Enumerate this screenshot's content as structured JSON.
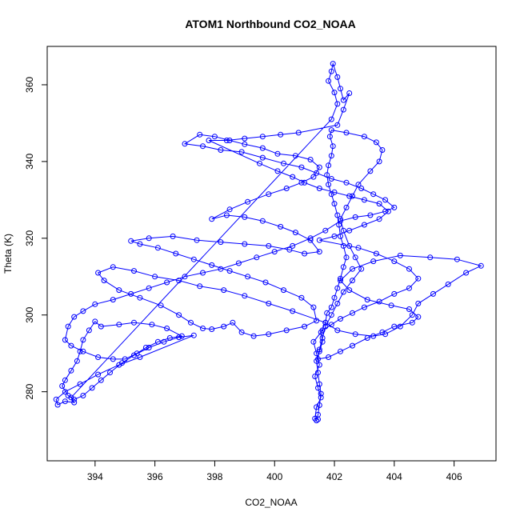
{
  "chart_data": {
    "type": "scatter",
    "title": "ATOM1 Northbound CO2_NOAA",
    "xlabel": "CO2_NOAA",
    "ylabel": "Theta (K)",
    "xlim": [
      392.4,
      407.4
    ],
    "ylim": [
      262.0,
      370.0
    ],
    "x_ticks": [
      394,
      396,
      398,
      400,
      402,
      404,
      406
    ],
    "y_ticks": [
      280,
      300,
      320,
      340,
      360
    ],
    "grid": false,
    "legend": "none",
    "markers": "open-circle",
    "connected": true,
    "series": [
      {
        "color": "#0000ff",
        "points": [
          [
            401.4,
            272.5
          ],
          [
            401.45,
            274.0
          ],
          [
            401.5,
            276.5
          ],
          [
            401.55,
            279.5
          ],
          [
            401.5,
            282.0
          ],
          [
            401.45,
            285.0
          ],
          [
            401.4,
            288.0
          ],
          [
            401.5,
            290.5
          ],
          [
            401.6,
            293.0
          ],
          [
            401.55,
            295.5
          ],
          [
            401.7,
            298.0
          ],
          [
            401.75,
            300.5
          ],
          [
            401.9,
            302.0
          ],
          [
            402.0,
            304.5
          ],
          [
            402.1,
            307.0
          ],
          [
            402.2,
            309.5
          ],
          [
            402.3,
            312.5
          ],
          [
            402.4,
            315.0
          ],
          [
            402.3,
            318.0
          ],
          [
            402.2,
            320.5
          ],
          [
            402.15,
            323.5
          ],
          [
            402.1,
            326.0
          ],
          [
            402.0,
            329.0
          ],
          [
            401.9,
            331.5
          ],
          [
            401.8,
            334.0
          ],
          [
            401.75,
            336.5
          ],
          [
            401.8,
            339.0
          ],
          [
            401.9,
            341.5
          ],
          [
            401.95,
            344.0
          ],
          [
            401.85,
            346.5
          ],
          [
            401.9,
            348.2
          ],
          [
            402.4,
            347.5
          ],
          [
            403.0,
            346.5
          ],
          [
            403.4,
            345.0
          ],
          [
            403.6,
            343.0
          ],
          [
            403.5,
            340.0
          ],
          [
            403.2,
            337.5
          ],
          [
            402.8,
            334.0
          ],
          [
            402.6,
            331.0
          ],
          [
            402.4,
            328.0
          ],
          [
            402.2,
            325.0
          ],
          [
            402.3,
            322.0
          ],
          [
            402.5,
            318.0
          ],
          [
            402.7,
            315.0
          ],
          [
            402.9,
            312.0
          ],
          [
            402.6,
            309.0
          ],
          [
            402.3,
            306.0
          ],
          [
            402.1,
            303.0
          ],
          [
            401.9,
            300.0
          ],
          [
            401.7,
            297.0
          ],
          [
            401.6,
            294.0
          ],
          [
            401.5,
            291.0
          ],
          [
            401.45,
            288.5
          ],
          [
            401.8,
            289.0
          ],
          [
            402.2,
            290.5
          ],
          [
            402.6,
            292.0
          ],
          [
            403.1,
            294.0
          ],
          [
            403.6,
            295.5
          ],
          [
            404.0,
            297.0
          ],
          [
            404.6,
            298.0
          ],
          [
            404.8,
            299.5
          ],
          [
            404.5,
            301.5
          ],
          [
            403.9,
            302.5
          ],
          [
            403.1,
            304.0
          ],
          [
            402.5,
            306.5
          ],
          [
            402.2,
            309.0
          ],
          [
            402.6,
            312.0
          ],
          [
            403.3,
            314.0
          ],
          [
            404.2,
            315.5
          ],
          [
            405.2,
            315.0
          ],
          [
            406.1,
            314.5
          ],
          [
            406.9,
            312.8
          ],
          [
            406.4,
            311.0
          ],
          [
            405.8,
            308.0
          ],
          [
            405.3,
            305.5
          ],
          [
            404.8,
            303.0
          ],
          [
            404.6,
            300.0
          ],
          [
            404.2,
            297.0
          ],
          [
            403.7,
            295.0
          ],
          [
            403.3,
            294.5
          ],
          [
            402.7,
            295.0
          ],
          [
            402.1,
            296.0
          ],
          [
            401.7,
            298.0
          ],
          [
            400.6,
            301.0
          ],
          [
            399.8,
            303.0
          ],
          [
            399.0,
            305.0
          ],
          [
            398.3,
            306.5
          ],
          [
            397.5,
            307.5
          ],
          [
            396.8,
            309.0
          ],
          [
            396.0,
            310.0
          ],
          [
            395.3,
            311.5
          ],
          [
            394.6,
            312.5
          ],
          [
            394.1,
            311.0
          ],
          [
            394.3,
            309.0
          ],
          [
            394.8,
            306.5
          ],
          [
            395.5,
            304.5
          ],
          [
            396.2,
            302.5
          ],
          [
            396.8,
            300.0
          ],
          [
            397.2,
            298.0
          ],
          [
            397.6,
            296.5
          ],
          [
            397.9,
            296.3
          ],
          [
            398.3,
            297.0
          ],
          [
            398.6,
            298.0
          ],
          [
            398.9,
            295.5
          ],
          [
            399.3,
            294.5
          ],
          [
            399.8,
            295.0
          ],
          [
            400.4,
            296.0
          ],
          [
            401.0,
            297.0
          ],
          [
            401.4,
            298.5
          ],
          [
            401.3,
            302.0
          ],
          [
            400.9,
            304.5
          ],
          [
            400.3,
            306.5
          ],
          [
            399.7,
            308.5
          ],
          [
            399.1,
            310.0
          ],
          [
            398.5,
            311.5
          ],
          [
            397.9,
            313.0
          ],
          [
            397.3,
            314.5
          ],
          [
            396.7,
            316.0
          ],
          [
            396.1,
            317.5
          ],
          [
            395.5,
            318.5
          ],
          [
            395.2,
            319.3
          ],
          [
            395.8,
            320.0
          ],
          [
            396.6,
            320.5
          ],
          [
            397.4,
            319.5
          ],
          [
            398.2,
            319.0
          ],
          [
            399.0,
            318.5
          ],
          [
            399.8,
            318.0
          ],
          [
            400.5,
            317.0
          ],
          [
            401.0,
            316.0
          ],
          [
            401.5,
            316.5
          ],
          [
            401.2,
            319.5
          ],
          [
            400.7,
            321.5
          ],
          [
            400.2,
            323.0
          ],
          [
            399.6,
            324.5
          ],
          [
            399.0,
            325.5
          ],
          [
            398.4,
            326.0
          ],
          [
            397.9,
            325.0
          ],
          [
            398.5,
            327.5
          ],
          [
            399.1,
            329.5
          ],
          [
            399.8,
            331.5
          ],
          [
            400.4,
            333.0
          ],
          [
            400.9,
            334.5
          ],
          [
            401.3,
            336.0
          ],
          [
            401.5,
            338.5
          ],
          [
            401.2,
            340.5
          ],
          [
            400.7,
            341.5
          ],
          [
            400.1,
            342.0
          ],
          [
            399.6,
            343.5
          ],
          [
            399.0,
            344.5
          ],
          [
            398.5,
            345.5
          ],
          [
            398.0,
            346.5
          ],
          [
            397.5,
            347.0
          ],
          [
            397.0,
            344.6
          ],
          [
            397.6,
            344.0
          ],
          [
            398.2,
            343.0
          ],
          [
            398.9,
            342.5
          ],
          [
            399.6,
            341.0
          ],
          [
            400.3,
            339.5
          ],
          [
            400.9,
            338.5
          ],
          [
            401.4,
            337.0
          ],
          [
            401.9,
            335.5
          ],
          [
            402.4,
            334.5
          ],
          [
            402.9,
            333.0
          ],
          [
            403.3,
            331.5
          ],
          [
            403.7,
            330.0
          ],
          [
            404.0,
            328.0
          ],
          [
            403.7,
            327.0
          ],
          [
            403.2,
            326.0
          ],
          [
            402.7,
            325.5
          ],
          [
            402.2,
            324.5
          ],
          [
            401.7,
            322.0
          ],
          [
            401.2,
            320.0
          ],
          [
            400.6,
            318.0
          ],
          [
            400.0,
            316.5
          ],
          [
            399.4,
            315.0
          ],
          [
            398.8,
            313.5
          ],
          [
            398.2,
            312.0
          ],
          [
            397.6,
            311.0
          ],
          [
            397.0,
            310.0
          ],
          [
            396.4,
            308.5
          ],
          [
            395.8,
            307.0
          ],
          [
            395.2,
            305.5
          ],
          [
            394.6,
            304.0
          ],
          [
            394.0,
            302.8
          ],
          [
            393.6,
            301.0
          ],
          [
            393.3,
            299.5
          ],
          [
            393.1,
            297.0
          ],
          [
            393.0,
            293.5
          ],
          [
            393.2,
            292.0
          ],
          [
            393.6,
            290.5
          ],
          [
            394.1,
            289.0
          ],
          [
            394.6,
            288.5
          ],
          [
            395.0,
            288.5
          ],
          [
            395.4,
            290.0
          ],
          [
            395.7,
            291.5
          ],
          [
            396.1,
            293.0
          ],
          [
            396.5,
            294.0
          ],
          [
            396.9,
            294.5
          ],
          [
            396.4,
            296.5
          ],
          [
            395.9,
            297.5
          ],
          [
            395.3,
            298.0
          ],
          [
            394.8,
            297.5
          ],
          [
            394.2,
            297.0
          ],
          [
            394.0,
            298.3
          ],
          [
            393.8,
            296.0
          ],
          [
            393.6,
            293.5
          ],
          [
            393.5,
            290.5
          ],
          [
            393.4,
            288.0
          ],
          [
            393.2,
            285.5
          ],
          [
            393.0,
            283.0
          ],
          [
            392.9,
            281.5
          ],
          [
            393.1,
            279.0
          ],
          [
            393.3,
            278.0
          ],
          [
            393.6,
            279.0
          ],
          [
            393.9,
            281.0
          ],
          [
            394.2,
            283.0
          ],
          [
            394.5,
            285.0
          ],
          [
            394.9,
            287.5
          ],
          [
            395.3,
            289.5
          ],
          [
            395.8,
            291.5
          ],
          [
            396.3,
            293.0
          ],
          [
            396.8,
            294.2
          ],
          [
            397.3,
            294.7
          ],
          [
            395.5,
            289.0
          ],
          [
            394.8,
            287.0
          ],
          [
            394.1,
            284.5
          ],
          [
            393.5,
            282.0
          ],
          [
            393.0,
            280.0
          ],
          [
            392.7,
            278.0
          ],
          [
            392.75,
            276.6
          ],
          [
            393.0,
            277.5
          ],
          [
            393.3,
            277.2
          ],
          [
            393.2,
            278.5
          ],
          [
            401.9,
            351.0
          ],
          [
            402.1,
            355.0
          ],
          [
            402.0,
            358.0
          ],
          [
            401.8,
            361.0
          ],
          [
            401.9,
            363.5
          ],
          [
            401.95,
            365.5
          ],
          [
            402.1,
            362.0
          ],
          [
            402.2,
            359.0
          ],
          [
            402.3,
            356.0
          ],
          [
            402.5,
            357.8
          ],
          [
            402.3,
            353.5
          ],
          [
            402.1,
            349.5
          ],
          [
            400.8,
            347.5
          ],
          [
            400.2,
            347.0
          ],
          [
            399.6,
            346.5
          ],
          [
            399.0,
            346.0
          ],
          [
            398.4,
            345.5
          ],
          [
            397.8,
            345.5
          ],
          [
            399.5,
            339.5
          ],
          [
            400.1,
            337.5
          ],
          [
            400.6,
            336.0
          ],
          [
            401.0,
            334.5
          ],
          [
            401.5,
            333.0
          ],
          [
            402.0,
            332.0
          ],
          [
            402.5,
            331.0
          ],
          [
            403.0,
            330.0
          ],
          [
            403.5,
            329.0
          ],
          [
            403.8,
            327.0
          ],
          [
            403.5,
            325.0
          ],
          [
            403.0,
            323.5
          ],
          [
            402.5,
            322.0
          ],
          [
            402.0,
            320.5
          ],
          [
            401.5,
            319.5
          ],
          [
            402.8,
            317.5
          ],
          [
            403.4,
            316.0
          ],
          [
            404.0,
            314.0
          ],
          [
            404.5,
            312.0
          ],
          [
            404.8,
            309.5
          ],
          [
            404.5,
            307.0
          ],
          [
            404.0,
            305.5
          ],
          [
            403.5,
            303.5
          ],
          [
            403.0,
            302.0
          ],
          [
            402.6,
            300.5
          ],
          [
            402.2,
            299.0
          ],
          [
            401.9,
            297.5
          ],
          [
            401.6,
            296.0
          ],
          [
            401.3,
            293.0
          ],
          [
            401.4,
            290.0
          ],
          [
            401.5,
            287.0
          ],
          [
            401.35,
            284.0
          ],
          [
            401.45,
            281.0
          ],
          [
            401.55,
            278.5
          ],
          [
            401.4,
            276.0
          ],
          [
            401.35,
            273.0
          ],
          [
            401.45,
            272.8
          ]
        ]
      }
    ]
  }
}
